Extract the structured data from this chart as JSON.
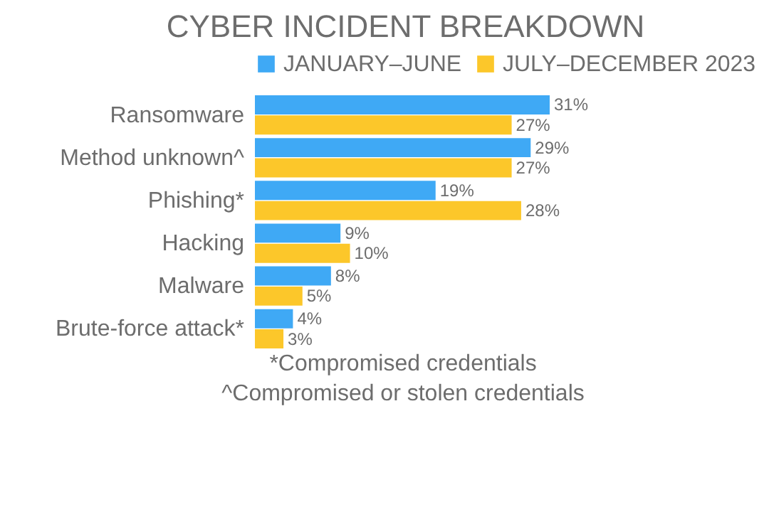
{
  "chart_data": {
    "type": "bar",
    "orientation": "horizontal",
    "title": "CYBER INCIDENT BREAKDOWN",
    "categories": [
      "Ransomware",
      "Method unknown^",
      "Phishing*",
      "Hacking",
      "Malware",
      "Brute-force attack*"
    ],
    "series": [
      {
        "name": "JANUARY–JUNE",
        "color": "#3fa9f5",
        "values": [
          31,
          29,
          19,
          9,
          8,
          4
        ],
        "value_labels": [
          "31%",
          "29%",
          "19%",
          "9%",
          "8%",
          "4%"
        ]
      },
      {
        "name": "JULY–DECEMBER 2023",
        "color": "#fcc72a",
        "values": [
          27,
          27,
          28,
          10,
          5,
          3
        ],
        "value_labels": [
          "27%",
          "27%",
          "28%",
          "10%",
          "5%",
          "3%"
        ]
      }
    ],
    "legend": "top",
    "grid": false,
    "annotations": [
      "*Compromised credentials",
      "^Compromised or stolen credentials"
    ]
  }
}
